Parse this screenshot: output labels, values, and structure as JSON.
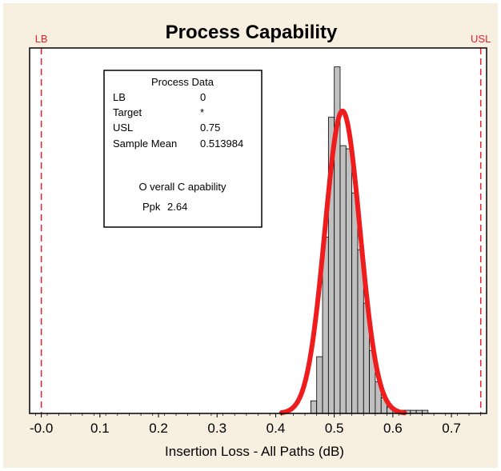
{
  "chart_data": {
    "type": "bar",
    "title": "Process Capability",
    "xlabel": "Insertion Loss - All Paths (dB)",
    "ylabel": "",
    "xlim": [
      -0.02,
      0.76
    ],
    "x_ticks": [
      "-0.0",
      "0.1",
      "0.2",
      "0.3",
      "0.4",
      "0.5",
      "0.6",
      "0.7"
    ],
    "x_tick_values": [
      0.0,
      0.1,
      0.2,
      0.3,
      0.4,
      0.5,
      0.6,
      0.7
    ],
    "spec_limits": [
      {
        "label": "LB",
        "value": 0.0
      },
      {
        "label": "USL",
        "value": 0.75
      }
    ],
    "histogram": {
      "bin_width": 0.01,
      "bin_starts": [
        0.46,
        0.47,
        0.48,
        0.49,
        0.5,
        0.51,
        0.52,
        0.53,
        0.54,
        0.55,
        0.56,
        0.57,
        0.58,
        0.59,
        0.6,
        0.61,
        0.62,
        0.63,
        0.64,
        0.65,
        0.66,
        0.67,
        0.68,
        0.69,
        0.7,
        0.71
      ],
      "values": [
        4,
        18,
        56,
        94,
        110,
        85,
        84,
        70,
        52,
        35,
        20,
        10,
        5,
        2,
        1,
        1,
        1,
        1,
        1,
        1,
        0,
        0,
        0,
        0,
        0,
        0
      ]
    },
    "fit_curve": {
      "name": "Overall",
      "mean": 0.513984,
      "sigma": 0.03,
      "peak": 96,
      "x_range": [
        0.41,
        0.62
      ]
    },
    "ylim": [
      0,
      116
    ],
    "grid": false,
    "colors": {
      "bars": "#c0c0c0",
      "bar_edge": "#000000",
      "curve": "#ee1c1c",
      "spec_lines": "#e8202a",
      "frame_bg": "#f7efe0"
    }
  },
  "process_data": {
    "heading": "Process Data",
    "rows": [
      {
        "label": "LB",
        "value": "0"
      },
      {
        "label": "Target",
        "value": "*"
      },
      {
        "label": "USL",
        "value": "0.75"
      },
      {
        "label": "Sample Mean",
        "value": "0.513984"
      }
    ],
    "capability_heading": "O verall C apability",
    "ppk_label": "Ppk",
    "ppk_value": "2.64"
  }
}
